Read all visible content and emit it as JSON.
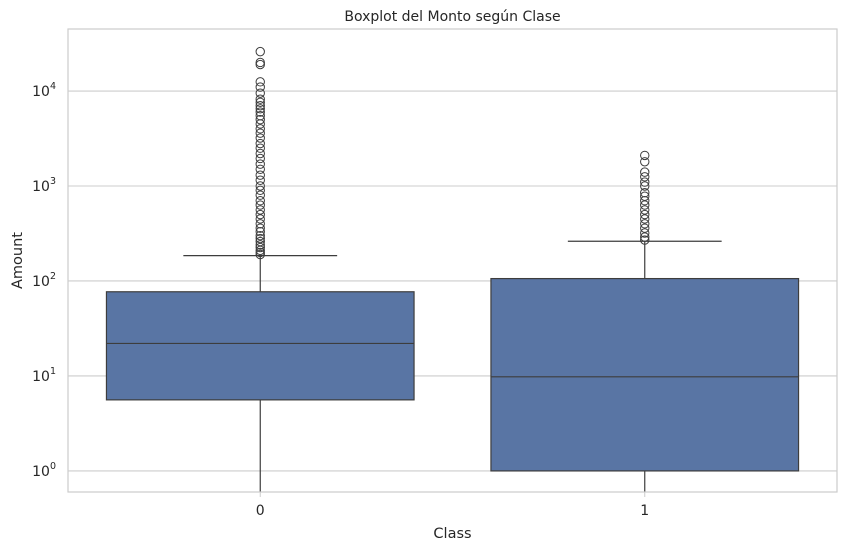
{
  "chart_data": {
    "type": "box",
    "title": "Boxplot del Monto según Clase",
    "xlabel": "Class",
    "ylabel": "Amount",
    "yscale": "log",
    "ylim": [
      0.6,
      45000
    ],
    "yticks": [
      {
        "value": 1,
        "base": "10",
        "exp": "0"
      },
      {
        "value": 10,
        "base": "10",
        "exp": "1"
      },
      {
        "value": 100,
        "base": "10",
        "exp": "2"
      },
      {
        "value": 1000,
        "base": "10",
        "exp": "3"
      },
      {
        "value": 10000,
        "base": "10",
        "exp": "4"
      }
    ],
    "grid": true,
    "categories": [
      "0",
      "1"
    ],
    "box_color": "#5975a4",
    "line_color": "#3d3d3d",
    "boxes": [
      {
        "category": "0",
        "whisker_low": 0.6,
        "q1": 5.6,
        "median": 22,
        "q3": 77,
        "whisker_high": 185,
        "outliers": [
          190,
          200,
          210,
          225,
          240,
          260,
          280,
          300,
          330,
          360,
          400,
          450,
          500,
          560,
          630,
          700,
          800,
          900,
          1000,
          1150,
          1300,
          1500,
          1700,
          1950,
          2200,
          2500,
          2800,
          3200,
          3600,
          4000,
          4500,
          5000,
          5500,
          6000,
          6500,
          7000,
          7600,
          8200,
          9500,
          11000,
          12500,
          19000,
          20000,
          26000
        ]
      },
      {
        "category": "1",
        "whisker_low": 0.6,
        "q1": 1,
        "median": 9.8,
        "q3": 106,
        "whisker_high": 262,
        "outliers": [
          270,
          290,
          320,
          360,
          400,
          450,
          500,
          560,
          630,
          700,
          780,
          850,
          1000,
          1100,
          1250,
          1400,
          1800,
          2100
        ]
      }
    ]
  }
}
